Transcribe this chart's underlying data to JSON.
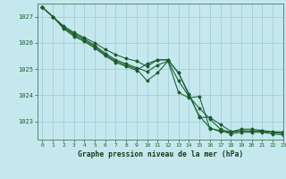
{
  "xlabel": "Graphe pression niveau de la mer (hPa)",
  "background_color": "#c5e8ef",
  "grid_color": "#9dc8d5",
  "line_color": "#1a5c2a",
  "spine_color": "#5a8a6a",
  "ylim": [
    1022.3,
    1027.5
  ],
  "xlim": [
    -0.5,
    23
  ],
  "yticks": [
    1023,
    1024,
    1025,
    1026,
    1027
  ],
  "xticks": [
    0,
    1,
    2,
    3,
    4,
    5,
    6,
    7,
    8,
    9,
    10,
    11,
    12,
    13,
    14,
    15,
    16,
    17,
    18,
    19,
    20,
    21,
    22,
    23
  ],
  "lines": [
    [
      1027.35,
      1027.0,
      1026.65,
      1026.4,
      1026.2,
      1026.0,
      1025.75,
      1025.55,
      1025.4,
      1025.3,
      1025.1,
      1025.35,
      1025.35,
      1024.85,
      1024.0,
      1023.2,
      1022.75,
      1022.6,
      1022.6,
      1022.7,
      1022.7,
      1022.65,
      1022.6,
      1022.6
    ],
    [
      1027.35,
      1027.0,
      1026.6,
      1026.35,
      1026.15,
      1025.9,
      1025.6,
      1025.35,
      1025.2,
      1025.05,
      1024.9,
      1025.15,
      1025.3,
      1024.55,
      1023.95,
      1023.5,
      1023.1,
      1022.7,
      1022.58,
      1022.63,
      1022.63,
      1022.62,
      1022.58,
      1022.55
    ],
    [
      1027.35,
      1027.0,
      1026.6,
      1026.3,
      1026.1,
      1025.85,
      1025.55,
      1025.3,
      1025.15,
      1025.0,
      1024.55,
      1024.85,
      1025.3,
      1024.1,
      1023.9,
      1023.95,
      1022.72,
      1022.65,
      1022.52,
      1022.58,
      1022.58,
      1022.58,
      1022.52,
      1022.48
    ],
    [
      1027.35,
      1027.0,
      1026.55,
      1026.25,
      1026.05,
      1025.8,
      1025.5,
      1025.25,
      1025.1,
      1024.95,
      1025.2,
      1025.35,
      1025.35,
      1024.85,
      1024.05,
      1023.15,
      1023.15,
      1022.88,
      1022.62,
      1022.63,
      1022.63,
      1022.63,
      1022.58,
      1022.53
    ]
  ]
}
